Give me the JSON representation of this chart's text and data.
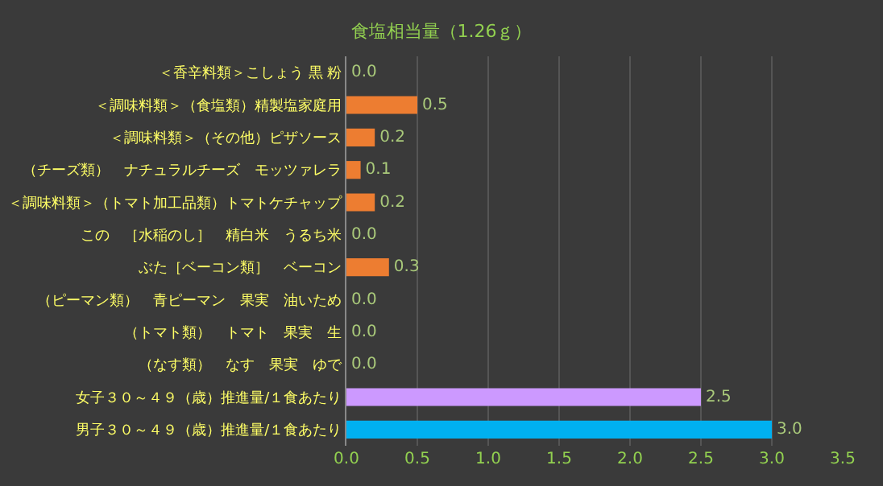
{
  "chart_data": {
    "type": "bar",
    "orientation": "horizontal",
    "title": "食塩相当量（1.26ｇ）",
    "categories": [
      "＜香辛料類＞こしょう 黒 粉",
      "＜調味料類＞（食塩類）精製塩家庭用",
      "＜調味料類＞（その他）ピザソース",
      "（チーズ類）　ナチュラルチーズ　モッツァレラ",
      "＜調味料類＞（トマト加工品類）トマトケチャップ",
      "この　［水稲のし］　精白米　うるち米",
      "ぶた［ベーコン類］　ベーコン",
      "（ピーマン類）　青ピーマン　果実　油いため",
      "（トマト類）　トマト　果実　生",
      "（なす類）　なす　果実　ゆで",
      "女子３０～４９（歳）推進量/１食あたり",
      "男子３０～４９（歳）推進量/１食あたり"
    ],
    "values": [
      0.0,
      0.5,
      0.2,
      0.1,
      0.2,
      0.0,
      0.3,
      0.0,
      0.0,
      0.0,
      2.5,
      3.0
    ],
    "value_labels": [
      "0.0",
      "0.5",
      "0.2",
      "0.1",
      "0.2",
      "0.0",
      "0.3",
      "0.0",
      "0.0",
      "0.0",
      "2.5",
      "3.0"
    ],
    "colors": [
      "#ed7d31",
      "#ed7d31",
      "#ed7d31",
      "#ed7d31",
      "#ed7d31",
      "#ed7d31",
      "#ed7d31",
      "#ed7d31",
      "#ed7d31",
      "#ed7d31",
      "#cc99ff",
      "#00b0f0"
    ],
    "xlim": [
      0,
      3.5
    ],
    "xticks": [
      {
        "value": 0,
        "label": "0.0"
      },
      {
        "value": 0.5,
        "label": "0.5"
      },
      {
        "value": 1,
        "label": "1.0"
      },
      {
        "value": 1.5,
        "label": "1.5"
      },
      {
        "value": 2,
        "label": "2.0"
      },
      {
        "value": 2.5,
        "label": "2.5"
      },
      {
        "value": 3,
        "label": "3.0"
      },
      {
        "value": 3.5,
        "label": "3.5"
      }
    ],
    "grid": "x"
  }
}
